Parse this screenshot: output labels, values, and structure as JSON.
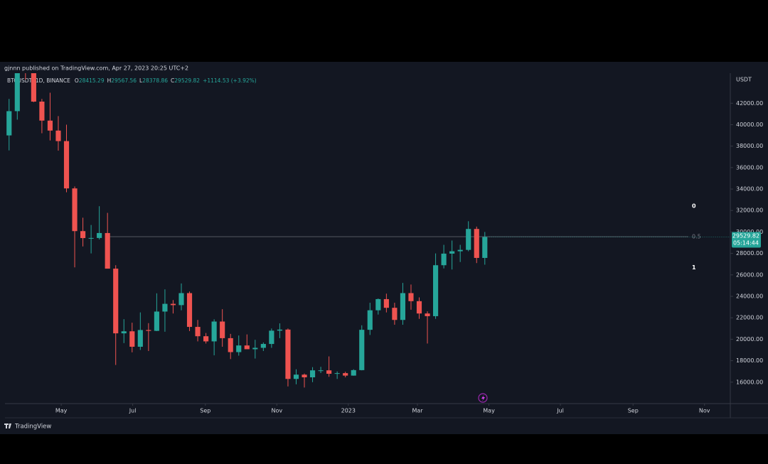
{
  "chart_data": {
    "type": "candlestick",
    "publisher": "gjnnn published on TradingView.com, Apr 27, 2023 20:25 UTC+2",
    "symbol": "BTCUSDT, 1D, BINANCE",
    "legend_items": [
      {
        "key": "O",
        "value": 28415.29
      },
      {
        "key": "H",
        "value": 29567.56
      },
      {
        "key": "L",
        "value": 28378.86
      },
      {
        "key": "C",
        "value": 29529.82
      }
    ],
    "change": "+1114.53 (+3.92%)",
    "price_unit": "USDT",
    "countdown": "05:14:44",
    "brand": "TradingView",
    "up_color": "#26a69a",
    "down_color": "#ef5350",
    "grid": false,
    "ylim": [
      14000,
      44800
    ],
    "yticks": [
      {
        "value": 16000,
        "label": "16000.00"
      },
      {
        "value": 18000,
        "label": "18000.00"
      },
      {
        "value": 20000,
        "label": "20000.00"
      },
      {
        "value": 22000,
        "label": "22000.00"
      },
      {
        "value": 24000,
        "label": "24000.00"
      },
      {
        "value": 26000,
        "label": "26000.00"
      },
      {
        "value": 28000,
        "label": "28000.00"
      },
      {
        "value": 30000,
        "label": "30000.00"
      },
      {
        "value": 32000,
        "label": "32000.00"
      },
      {
        "value": 34000,
        "label": "34000.00"
      },
      {
        "value": 36000,
        "label": "36000.00"
      },
      {
        "value": 38000,
        "label": "38000.00"
      },
      {
        "value": 40000,
        "label": "40000.00"
      },
      {
        "value": 42000,
        "label": "42000.00"
      }
    ],
    "xlim": [
      "2022-03-14",
      "2023-11-23"
    ],
    "xticks": [
      {
        "value": "2022-05-01",
        "label": "May"
      },
      {
        "value": "2022-07-01",
        "label": "Jul"
      },
      {
        "value": "2022-09-01",
        "label": "Sep"
      },
      {
        "value": "2022-11-01",
        "label": "Nov"
      },
      {
        "value": "2023-01-01",
        "label": "2023"
      },
      {
        "value": "2023-03-01",
        "label": "Mar"
      },
      {
        "value": "2023-05-01",
        "label": "May"
      },
      {
        "value": "2023-07-01",
        "label": "Jul"
      },
      {
        "value": "2023-09-01",
        "label": "Sep"
      },
      {
        "value": "2023-11-01",
        "label": "Nov"
      }
    ],
    "fib_levels": [
      {
        "label": "0",
        "value": 32400,
        "line": false
      },
      {
        "label": "0.5",
        "value": 29560,
        "line": true
      },
      {
        "label": "1",
        "value": 26700,
        "line": false
      }
    ],
    "candles": {
      "x": [
        "2022-03-14",
        "2022-03-21",
        "2022-03-28",
        "2022-04-04",
        "2022-04-11",
        "2022-04-18",
        "2022-04-25",
        "2022-05-02",
        "2022-05-09",
        "2022-05-16",
        "2022-05-23",
        "2022-05-30",
        "2022-06-06",
        "2022-06-13",
        "2022-06-20",
        "2022-06-27",
        "2022-07-04",
        "2022-07-11",
        "2022-07-18",
        "2022-07-25",
        "2022-08-01",
        "2022-08-08",
        "2022-08-15",
        "2022-08-22",
        "2022-08-29",
        "2022-09-05",
        "2022-09-12",
        "2022-09-19",
        "2022-09-26",
        "2022-10-03",
        "2022-10-10",
        "2022-10-17",
        "2022-10-24",
        "2022-10-31",
        "2022-11-07",
        "2022-11-14",
        "2022-11-21",
        "2022-11-28",
        "2022-12-05",
        "2022-12-12",
        "2022-12-19",
        "2022-12-26",
        "2023-01-02",
        "2023-01-09",
        "2023-01-16",
        "2023-01-23",
        "2023-01-30",
        "2023-02-06",
        "2023-02-13",
        "2023-02-20",
        "2023-02-27",
        "2023-03-06",
        "2023-03-13",
        "2023-03-20",
        "2023-03-27",
        "2023-04-03",
        "2023-04-10",
        "2023-04-17",
        "2023-04-24"
      ],
      "open": [
        39000,
        41260,
        46800,
        46400,
        42150,
        40380,
        39450,
        38470,
        34060,
        30080,
        29430,
        29440,
        29900,
        26580,
        20550,
        20740,
        19300,
        20860,
        20780,
        22580,
        23300,
        23180,
        24300,
        21150,
        20280,
        19800,
        21650,
        20100,
        18800,
        19420,
        19070,
        19200,
        19560,
        20800,
        20900,
        16300,
        16700,
        16450,
        17100,
        17100,
        16780,
        16840,
        16610,
        17120,
        20880,
        22700,
        23740,
        22930,
        21800,
        24300,
        23550,
        22400,
        22150,
        26900,
        27980,
        28200,
        28330,
        30280,
        27580
      ],
      "high": [
        42400,
        47300,
        48190,
        47440,
        42400,
        42980,
        40800,
        40000,
        34240,
        31330,
        30650,
        32400,
        31780,
        26900,
        21870,
        21540,
        22500,
        21500,
        24280,
        24650,
        23650,
        25200,
        24450,
        21800,
        20580,
        21860,
        22800,
        20500,
        20350,
        20450,
        19950,
        19700,
        21000,
        21480,
        21000,
        17200,
        16800,
        17400,
        17430,
        18400,
        17000,
        16970,
        17200,
        21300,
        23400,
        23800,
        24250,
        23400,
        25250,
        25100,
        23900,
        22600,
        28000,
        28800,
        29200,
        28800,
        31000,
        30500,
        30000
      ],
      "low": [
        37600,
        40470,
        44200,
        42100,
        39200,
        38530,
        37580,
        33700,
        26700,
        28650,
        28000,
        29300,
        28880,
        17600,
        19640,
        18780,
        19000,
        18900,
        20760,
        20700,
        22400,
        22700,
        20760,
        19800,
        19600,
        18500,
        19300,
        18150,
        18470,
        19150,
        18200,
        18900,
        19200,
        20100,
        15600,
        15800,
        15500,
        16000,
        16850,
        16500,
        16300,
        16450,
        16600,
        17100,
        20400,
        22300,
        22500,
        21350,
        21350,
        22750,
        21900,
        19600,
        21900,
        26600,
        26500,
        27200,
        28200,
        27100,
        26950
      ],
      "close": [
        41260,
        46800,
        46400,
        42150,
        40380,
        39450,
        38470,
        34060,
        30080,
        29430,
        29440,
        29900,
        26580,
        20550,
        20740,
        19300,
        20860,
        20780,
        22580,
        23300,
        23180,
        24300,
        21150,
        20280,
        19800,
        21650,
        20100,
        18800,
        19420,
        19070,
        19200,
        19560,
        20800,
        20900,
        16300,
        16700,
        16450,
        17100,
        17100,
        16780,
        16840,
        16610,
        17120,
        20880,
        22700,
        23740,
        22930,
        21800,
        24300,
        23550,
        22400,
        22150,
        26900,
        27980,
        28200,
        28330,
        30280,
        27580,
        29529.82
      ]
    }
  }
}
